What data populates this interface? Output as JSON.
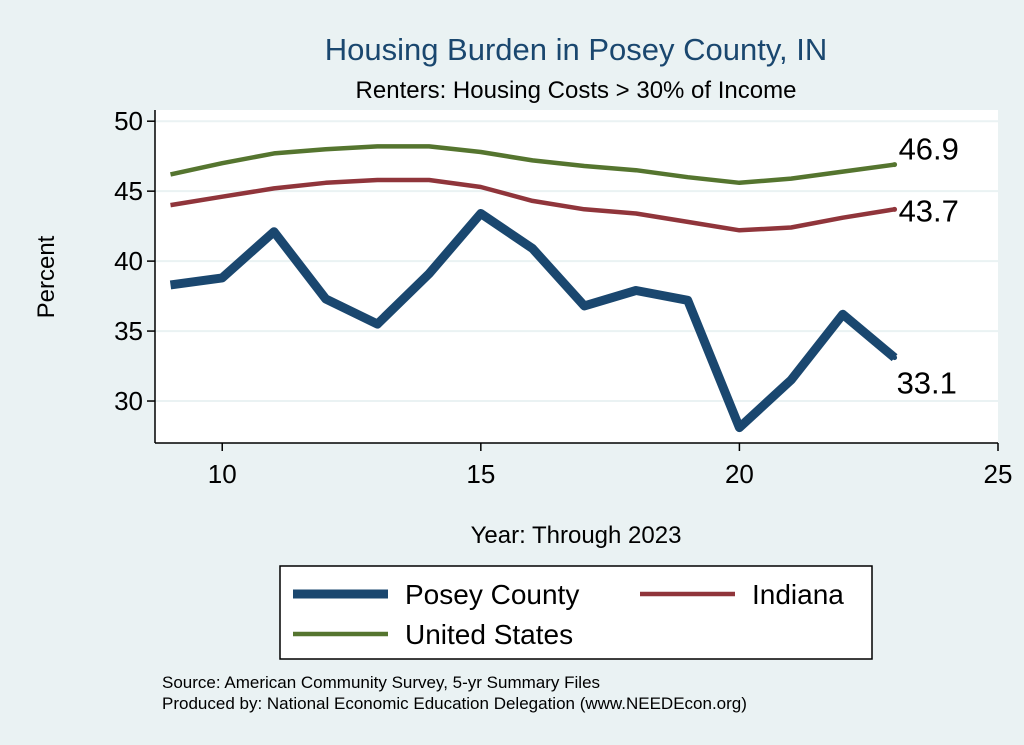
{
  "chart_data": {
    "type": "line",
    "title": "Housing Burden in Posey County, IN",
    "subtitle": "Renters: Housing Costs > 30% of Income",
    "xlabel": "Year: Through 2023",
    "ylabel": "Percent",
    "xlim": [
      8.7,
      25
    ],
    "ylim": [
      27.0,
      50.8
    ],
    "xticks": [
      10,
      15,
      20,
      25
    ],
    "yticks": [
      30,
      35,
      40,
      45,
      50
    ],
    "grid": true,
    "x": [
      9,
      10,
      11,
      12,
      13,
      14,
      15,
      16,
      17,
      18,
      19,
      20,
      21,
      22,
      23
    ],
    "series": [
      {
        "name": "Posey County",
        "color": "#1a476f",
        "values": [
          38.3,
          38.8,
          42.1,
          37.3,
          35.5,
          39.1,
          43.4,
          40.9,
          36.8,
          37.9,
          37.2,
          28.1,
          31.5,
          36.2,
          33.1
        ],
        "end_label": "33.1"
      },
      {
        "name": "Indiana",
        "color": "#90353b",
        "values": [
          44.0,
          44.6,
          45.2,
          45.6,
          45.8,
          45.8,
          45.3,
          44.3,
          43.7,
          43.4,
          42.8,
          42.2,
          42.4,
          43.1,
          43.7
        ],
        "end_label": "43.7"
      },
      {
        "name": "United States",
        "color": "#55752f",
        "values": [
          46.2,
          47.0,
          47.7,
          48.0,
          48.2,
          48.2,
          47.8,
          47.2,
          46.8,
          46.5,
          46.0,
          45.6,
          45.9,
          46.4,
          46.9
        ],
        "end_label": "46.9"
      }
    ],
    "legend": {
      "position": "bottom",
      "items": [
        "Posey County",
        "Indiana",
        "United States"
      ]
    },
    "notes": [
      "Source: American Community Survey, 5-yr Summary Files",
      "Produced by: National Economic Education Delegation (www.NEEDEcon.org)"
    ]
  }
}
